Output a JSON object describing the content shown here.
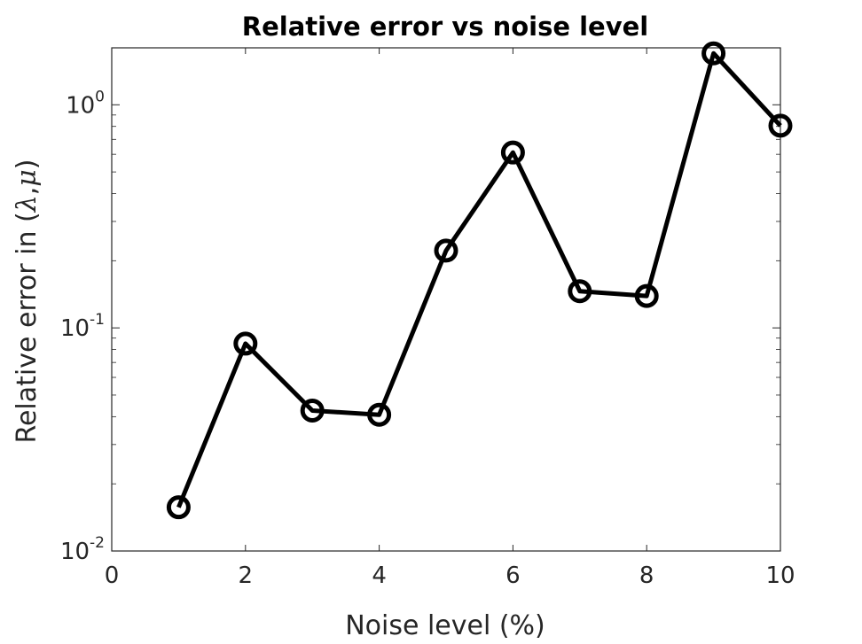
{
  "chart_data": {
    "type": "line",
    "title": "Relative error vs noise level",
    "xlabel": "Noise level (%)",
    "ylabel": {
      "text": "Relative error in (",
      "symbol_1": "λ",
      "separator": ",",
      "symbol_2": "μ",
      "close": ")"
    },
    "xlim": [
      0,
      10
    ],
    "ylim": [
      0.01,
      1.8
    ],
    "yscale": "log",
    "grid": false,
    "x_ticks": [
      "0",
      "2",
      "4",
      "6",
      "8",
      "10"
    ],
    "y_ticks": [
      {
        "base": "10",
        "exp": "-2"
      },
      {
        "base": "10",
        "exp": "-1"
      },
      {
        "base": "10",
        "exp": "0"
      }
    ],
    "series": [
      {
        "marker": "circle",
        "color": "#000000",
        "x": [
          1,
          2,
          3,
          4,
          5,
          6,
          7,
          8,
          9,
          10
        ],
        "y": [
          0.0157,
          0.085,
          0.0426,
          0.0408,
          0.222,
          0.611,
          0.146,
          0.139,
          1.7,
          0.806
        ]
      }
    ]
  }
}
